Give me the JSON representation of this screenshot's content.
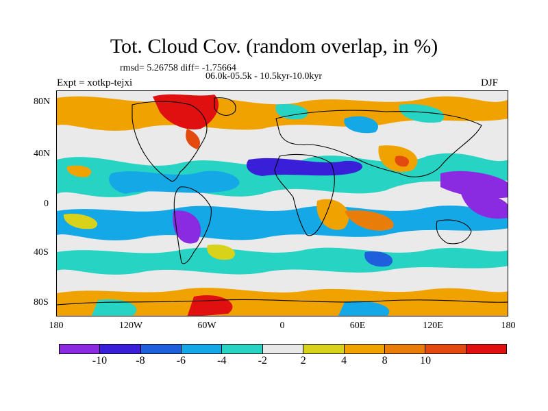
{
  "title": "Tot. Cloud Cov. (random overlap, in %)",
  "stats": "rmsd= 5.26758 diff= -1.75664",
  "period": "06.0k-05.5k - 10.5kyr-10.0kyr",
  "experiment": "Expt = xotkp-tejxi",
  "season": "DJF",
  "map": {
    "y_ticks": [
      "80N",
      "40N",
      "0",
      "40S",
      "80S"
    ],
    "x_ticks": [
      "180",
      "120W",
      "60W",
      "0",
      "60E",
      "120E",
      "180"
    ]
  },
  "colorbar": {
    "colors": [
      "#8a2be2",
      "#3a1fd8",
      "#1f5fdc",
      "#14a8e6",
      "#27d3c3",
      "#e8e8e8",
      "#d9d21a",
      "#f0a300",
      "#e87d0a",
      "#e34a0f",
      "#e01010"
    ],
    "labels": [
      "-10",
      "-8",
      "-6",
      "-4",
      "-2",
      "2",
      "4",
      "8",
      "10"
    ]
  }
}
